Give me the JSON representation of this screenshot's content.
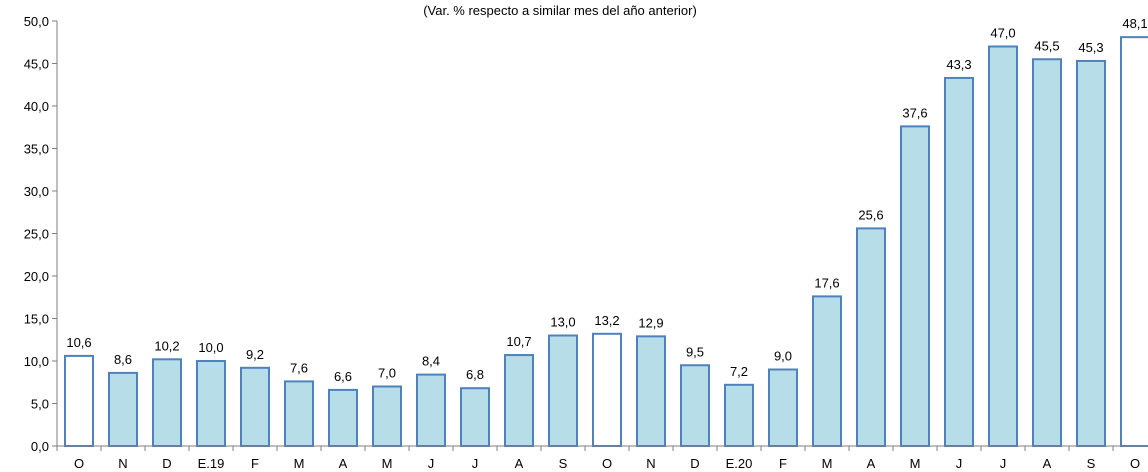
{
  "chart_data": {
    "type": "bar",
    "subtitle": "(Var. % respecto a similar mes del año anterior)",
    "categories": [
      "O",
      "N",
      "D",
      "E.19",
      "F",
      "M",
      "A",
      "M",
      "J",
      "J",
      "A",
      "S",
      "O",
      "N",
      "D",
      "E.20",
      "F",
      "M",
      "A",
      "M",
      "J",
      "J",
      "A",
      "S",
      "O"
    ],
    "values": [
      10.6,
      8.6,
      10.2,
      10.0,
      9.2,
      7.6,
      6.6,
      7.0,
      8.4,
      6.8,
      10.7,
      13.0,
      13.2,
      12.9,
      9.5,
      7.2,
      9.0,
      17.6,
      25.6,
      37.6,
      43.3,
      47.0,
      45.5,
      45.3,
      48.1
    ],
    "value_labels": [
      "10,6",
      "8,6",
      "10,2",
      "10,0",
      "9,2",
      "7,6",
      "6,6",
      "7,0",
      "8,4",
      "6,8",
      "10,7",
      "13,0",
      "13,2",
      "12,9",
      "9,5",
      "7,2",
      "9,0",
      "17,6",
      "25,6",
      "37,6",
      "43,3",
      "47,0",
      "45,5",
      "45,3",
      "48,1"
    ],
    "highlighted": [
      true,
      false,
      false,
      false,
      false,
      false,
      false,
      false,
      false,
      false,
      false,
      false,
      true,
      false,
      false,
      false,
      false,
      false,
      false,
      false,
      false,
      false,
      false,
      false,
      true
    ],
    "ylim": [
      0,
      50
    ],
    "yticks": [
      0,
      5,
      10,
      15,
      20,
      25,
      30,
      35,
      40,
      45,
      50
    ],
    "ytick_labels": [
      "0,0",
      "5,0",
      "10,0",
      "15,0",
      "20,0",
      "25,0",
      "30,0",
      "35,0",
      "40,0",
      "45,0",
      "50,0"
    ],
    "grid": false,
    "colors": {
      "bar_fill": "#b7dde8",
      "highlight_fill": "#ffffff",
      "bar_stroke": "#4f81bd",
      "axis": "#7f7f7f"
    }
  }
}
